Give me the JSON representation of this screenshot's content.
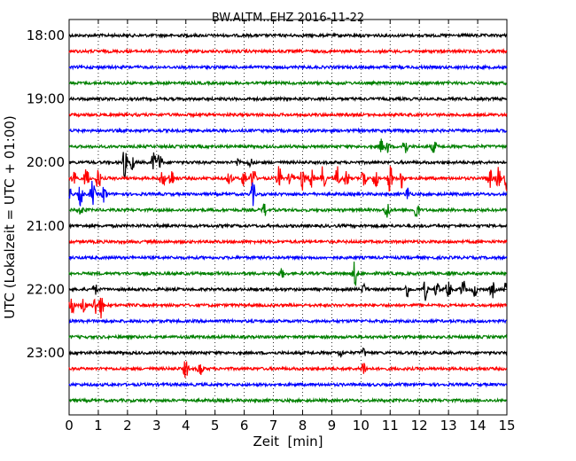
{
  "chart_data": {
    "type": "line",
    "title": "BW.ALTM..EHZ 2016-11-22",
    "xlabel": "Zeit  [min]",
    "ylabel": "UTC (Lokalzeit = UTC + 01:00)",
    "xlim": [
      0,
      15
    ],
    "x_ticks": [
      0,
      1,
      2,
      3,
      4,
      5,
      6,
      7,
      8,
      9,
      10,
      11,
      12,
      13,
      14,
      15
    ],
    "x_tick_labels": [
      "0",
      "1",
      "2",
      "3",
      "4",
      "5",
      "6",
      "7",
      "8",
      "9",
      "10",
      "11",
      "12",
      "13",
      "14",
      "15"
    ],
    "y_tick_labels": [
      "18:00",
      "19:00",
      "20:00",
      "21:00",
      "22:00",
      "23:00"
    ],
    "grid": "vertical dotted",
    "legend": "none",
    "colors": [
      "#000000",
      "#ff0000",
      "#0000ff",
      "#008000"
    ],
    "series": [
      {
        "start": "18:00",
        "color": "#000000",
        "events": []
      },
      {
        "start": "18:15",
        "color": "#ff0000",
        "events": []
      },
      {
        "start": "18:30",
        "color": "#0000ff",
        "events": []
      },
      {
        "start": "18:45",
        "color": "#008000",
        "events": []
      },
      {
        "start": "19:00",
        "color": "#000000",
        "events": []
      },
      {
        "start": "19:15",
        "color": "#ff0000",
        "events": []
      },
      {
        "start": "19:30",
        "color": "#0000ff",
        "events": []
      },
      {
        "start": "19:45",
        "color": "#008000",
        "events": [
          [
            10.7,
            8
          ],
          [
            10.9,
            7
          ],
          [
            11.5,
            14
          ],
          [
            12.5,
            8
          ]
        ]
      },
      {
        "start": "20:00",
        "color": "#000000",
        "events": [
          [
            1.9,
            18
          ],
          [
            2.15,
            10
          ],
          [
            2.9,
            12
          ],
          [
            3.1,
            12
          ],
          [
            5.8,
            5
          ],
          [
            6.2,
            5
          ]
        ]
      },
      {
        "start": "20:15",
        "color": "#ff0000",
        "events": [
          [
            0.2,
            20
          ],
          [
            0.6,
            14
          ],
          [
            1.0,
            14
          ],
          [
            3.2,
            12
          ],
          [
            3.5,
            12
          ],
          [
            5.5,
            8
          ],
          [
            6.0,
            12
          ],
          [
            6.3,
            20
          ],
          [
            7.2,
            16
          ],
          [
            7.6,
            10
          ],
          [
            8.0,
            14
          ],
          [
            8.3,
            12
          ],
          [
            8.7,
            16
          ],
          [
            9.2,
            14
          ],
          [
            9.5,
            12
          ],
          [
            10.1,
            14
          ],
          [
            10.5,
            14
          ],
          [
            11.0,
            18
          ],
          [
            11.4,
            12
          ],
          [
            14.4,
            14
          ],
          [
            14.7,
            16
          ],
          [
            15.0,
            14
          ]
        ]
      },
      {
        "start": "20:30",
        "color": "#0000ff",
        "events": [
          [
            0.0,
            12
          ],
          [
            0.4,
            14
          ],
          [
            0.8,
            16
          ],
          [
            1.2,
            10
          ],
          [
            6.3,
            14
          ],
          [
            11.6,
            8
          ]
        ]
      },
      {
        "start": "20:45",
        "color": "#008000",
        "events": [
          [
            0.4,
            6
          ],
          [
            6.7,
            8
          ],
          [
            10.9,
            12
          ],
          [
            11.9,
            12
          ]
        ]
      },
      {
        "start": "21:00",
        "color": "#000000",
        "events": []
      },
      {
        "start": "21:15",
        "color": "#ff0000",
        "events": []
      },
      {
        "start": "21:30",
        "color": "#0000ff",
        "events": []
      },
      {
        "start": "21:45",
        "color": "#008000",
        "events": [
          [
            7.3,
            6
          ],
          [
            9.8,
            18
          ]
        ]
      },
      {
        "start": "22:00",
        "color": "#000000",
        "events": [
          [
            0.9,
            6
          ],
          [
            10.1,
            6
          ],
          [
            11.6,
            10
          ],
          [
            12.2,
            12
          ],
          [
            12.6,
            10
          ],
          [
            13.0,
            12
          ],
          [
            13.5,
            12
          ],
          [
            13.9,
            8
          ],
          [
            14.5,
            10
          ],
          [
            15.0,
            12
          ]
        ]
      },
      {
        "start": "22:15",
        "color": "#ff0000",
        "events": [
          [
            0.1,
            14
          ],
          [
            0.5,
            10
          ],
          [
            0.9,
            12
          ],
          [
            1.1,
            14
          ]
        ]
      },
      {
        "start": "22:30",
        "color": "#0000ff",
        "events": []
      },
      {
        "start": "22:45",
        "color": "#008000",
        "events": []
      },
      {
        "start": "23:00",
        "color": "#000000",
        "events": [
          [
            9.3,
            5
          ],
          [
            10.1,
            5
          ]
        ]
      },
      {
        "start": "23:15",
        "color": "#ff0000",
        "events": [
          [
            4.0,
            12
          ],
          [
            4.5,
            10
          ],
          [
            10.1,
            10
          ]
        ]
      },
      {
        "start": "23:30",
        "color": "#0000ff",
        "events": []
      },
      {
        "start": "23:45",
        "color": "#008000",
        "events": []
      }
    ]
  }
}
